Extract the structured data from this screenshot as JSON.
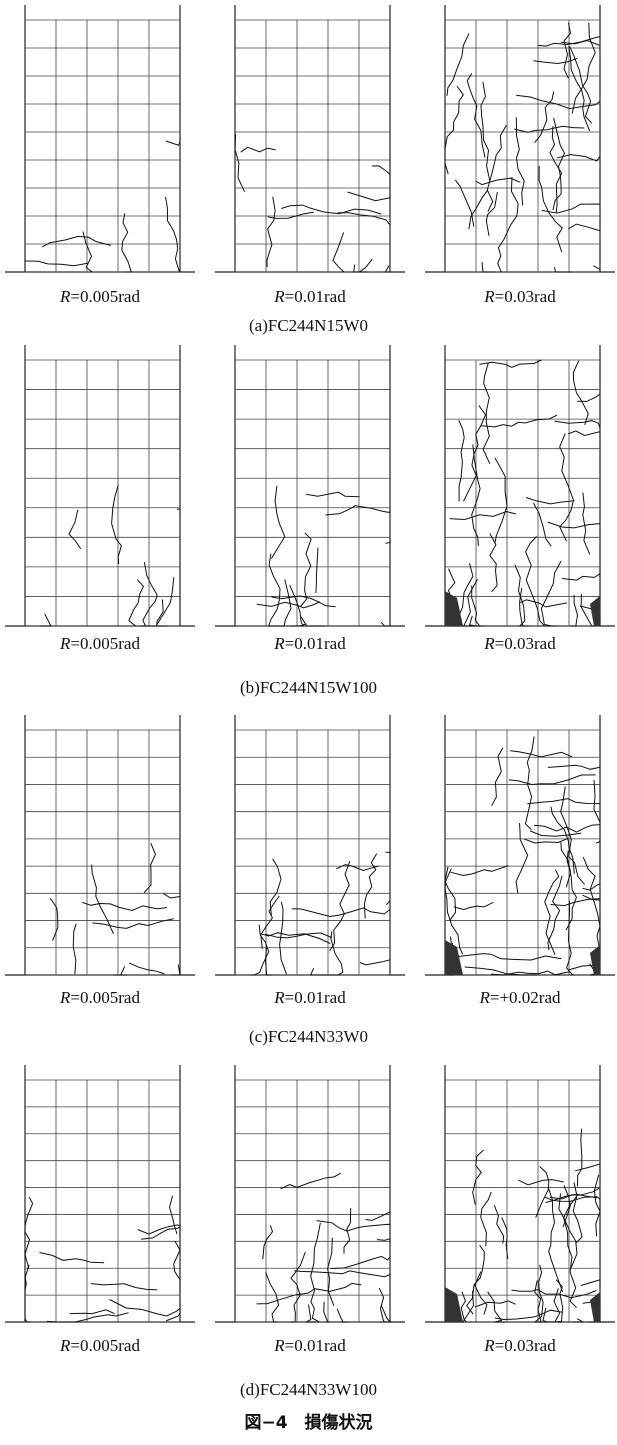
{
  "figure": {
    "rows": [
      {
        "caption": "(a)FC244N15W0",
        "panels": [
          "R=0.005rad",
          "R=0.01rad",
          "R=0.03rad"
        ]
      },
      {
        "caption": "(b)FC244N15W100",
        "panels": [
          "R=0.005rad",
          "R=0.01rad",
          "R=0.03rad"
        ]
      },
      {
        "caption": "(c)FC244N33W0",
        "panels": [
          "R=0.005rad",
          "R=0.01rad",
          "R=+0.02rad"
        ]
      },
      {
        "caption": "(d)FC244N33W100",
        "panels": [
          "R=0.005rad",
          "R=0.01rad",
          "R=0.03rad"
        ]
      }
    ],
    "caption": "図−4　損傷状況"
  }
}
